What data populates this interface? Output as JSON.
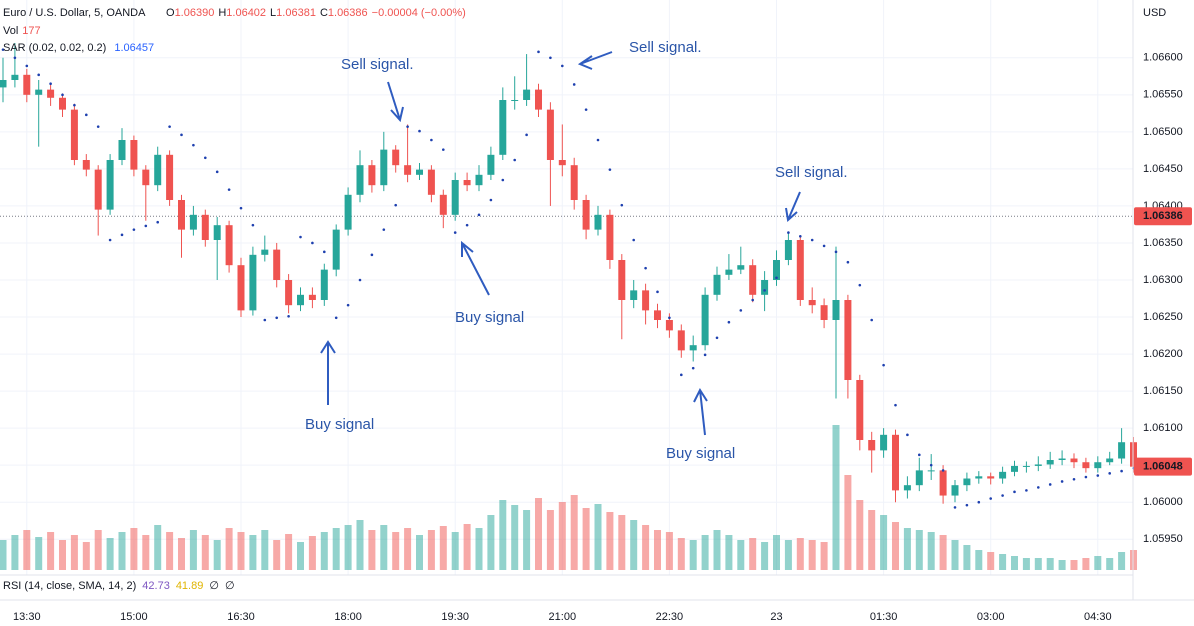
{
  "chart_data": {
    "type": "candlestick",
    "symbol": "Euro / U.S. Dollar, 5, OANDA",
    "quote": [
      {
        "prefix": "O",
        "value": "1.06390"
      },
      {
        "prefix": "H",
        "value": "1.06402"
      },
      {
        "prefix": "L",
        "value": "1.06381"
      },
      {
        "prefix": "C",
        "value": "1.06386"
      }
    ],
    "change": "−0.00004 (−0.00%)",
    "volume_legend": {
      "label": "Vol",
      "value": 177
    },
    "sar_legend": {
      "label": "SAR (0.02, 0.02, 0.2)",
      "value": 1.06457
    },
    "rsi_legend": {
      "label": "RSI (14, close, SMA, 14, 2)",
      "values": [
        42.73,
        41.89
      ],
      "empty": [
        "∅",
        "∅"
      ]
    },
    "currency": "USD",
    "up_color": "#26a69a",
    "down_color": "#ef5350",
    "sar_color": "#1e40af",
    "grid": true,
    "ylim": [
      1.05895,
      1.06678
    ],
    "yticks": [
      {
        "value": 1.0595,
        "label": "1.05950"
      },
      {
        "value": 1.06,
        "label": "1.06000"
      },
      {
        "value": 1.0605,
        "label": "1.06050"
      },
      {
        "value": 1.061,
        "label": "1.06100"
      },
      {
        "value": 1.0615,
        "label": "1.06150"
      },
      {
        "value": 1.062,
        "label": "1.06200"
      },
      {
        "value": 1.0625,
        "label": "1.06250"
      },
      {
        "value": 1.063,
        "label": "1.06300"
      },
      {
        "value": 1.0635,
        "label": "1.06350"
      },
      {
        "value": 1.064,
        "label": "1.06400"
      },
      {
        "value": 1.0645,
        "label": "1.06450"
      },
      {
        "value": 1.065,
        "label": "1.06500"
      },
      {
        "value": 1.0655,
        "label": "1.06550"
      },
      {
        "value": 1.066,
        "label": "1.06600"
      }
    ],
    "price_lines": [
      {
        "value": 1.06386,
        "dotted": true
      },
      {
        "value": 1.06048,
        "dotted": false
      }
    ],
    "vlim": [
      0,
      200
    ],
    "categories": [
      null,
      null,
      "13:30",
      null,
      null,
      null,
      null,
      null,
      null,
      null,
      null,
      "15:00",
      null,
      null,
      null,
      null,
      null,
      null,
      null,
      null,
      "16:30",
      null,
      null,
      null,
      null,
      null,
      null,
      null,
      null,
      "18:00",
      null,
      null,
      null,
      null,
      null,
      null,
      null,
      null,
      "19:30",
      null,
      null,
      null,
      null,
      null,
      null,
      null,
      null,
      "21:00",
      null,
      null,
      null,
      null,
      null,
      null,
      null,
      null,
      "22:30",
      null,
      null,
      null,
      null,
      null,
      null,
      null,
      null,
      "23",
      null,
      null,
      null,
      null,
      null,
      null,
      null,
      null,
      "01:30",
      null,
      null,
      null,
      null,
      null,
      null,
      null,
      null,
      "03:00",
      null,
      null,
      null,
      null,
      null,
      null,
      null,
      null,
      "04:30",
      null,
      null,
      null
    ],
    "open": [
      1.0656,
      1.0657,
      1.06577,
      1.0655,
      1.06557,
      1.06546,
      1.0653,
      1.06462,
      1.06449,
      1.06395,
      1.06462,
      1.06489,
      1.06449,
      1.06428,
      1.06469,
      1.06408,
      1.06368,
      1.06388,
      1.06354,
      1.06374,
      1.0632,
      1.06259,
      1.06334,
      1.06341,
      1.063,
      1.06266,
      1.0628,
      1.06273,
      1.06314,
      1.06368,
      1.06415,
      1.06455,
      1.06428,
      1.06476,
      1.06455,
      1.06442,
      1.06449,
      1.06415,
      1.06388,
      1.06435,
      1.06428,
      1.06442,
      1.06469,
      1.06543,
      1.06543,
      1.06557,
      1.0653,
      1.06462,
      1.06455,
      1.06408,
      1.06368,
      1.06388,
      1.06327,
      1.06273,
      1.06286,
      1.06259,
      1.06246,
      1.06232,
      1.06205,
      1.06212,
      1.0628,
      1.06307,
      1.06314,
      1.0632,
      1.0628,
      1.063,
      1.06327,
      1.06354,
      1.06273,
      1.06266,
      1.06246,
      1.06273,
      1.06165,
      1.06084,
      1.0607,
      1.06091,
      1.06016,
      1.06023,
      1.06043,
      1.06043,
      1.06009,
      1.06023,
      1.06032,
      1.06035,
      1.06032,
      1.06041,
      1.06049,
      1.06049,
      1.06051,
      1.06057,
      1.06059,
      1.06054,
      1.06046,
      1.06054,
      1.06059,
      1.06081
    ],
    "high": [
      1.066,
      1.0662,
      1.06585,
      1.0657,
      1.06565,
      1.06552,
      1.06538,
      1.0647,
      1.06455,
      1.0647,
      1.06505,
      1.06495,
      1.06455,
      1.0648,
      1.06475,
      1.06415,
      1.064,
      1.06395,
      1.06385,
      1.0638,
      1.0633,
      1.06345,
      1.0636,
      1.0635,
      1.06308,
      1.0629,
      1.0629,
      1.06322,
      1.06375,
      1.06425,
      1.06475,
      1.06462,
      1.065,
      1.06482,
      1.0651,
      1.06458,
      1.06455,
      1.06422,
      1.06445,
      1.06445,
      1.06455,
      1.0648,
      1.0656,
      1.06575,
      1.06605,
      1.06565,
      1.0654,
      1.0651,
      1.06465,
      1.06415,
      1.064,
      1.06395,
      1.06335,
      1.063,
      1.06295,
      1.06268,
      1.06255,
      1.0624,
      1.06225,
      1.0629,
      1.06318,
      1.06335,
      1.06345,
      1.06328,
      1.06312,
      1.0634,
      1.06365,
      1.0636,
      1.0629,
      1.06275,
      1.06345,
      1.0628,
      1.06172,
      1.06095,
      1.061,
      1.06098,
      1.06035,
      1.0606,
      1.06065,
      1.0605,
      1.0603,
      1.0604,
      1.06042,
      1.0604,
      1.06048,
      1.06056,
      1.06055,
      1.06062,
      1.06068,
      1.0607,
      1.06066,
      1.0606,
      1.06062,
      1.06068,
      1.061,
      1.06088
    ],
    "low": [
      1.0654,
      1.0656,
      1.0654,
      1.0648,
      1.06535,
      1.0652,
      1.06455,
      1.0644,
      1.0636,
      1.06388,
      1.06455,
      1.0644,
      1.0638,
      1.0642,
      1.064,
      1.0633,
      1.0636,
      1.06345,
      1.063,
      1.0631,
      1.0625,
      1.06252,
      1.06325,
      1.0629,
      1.06255,
      1.06258,
      1.06262,
      1.06265,
      1.06305,
      1.0636,
      1.06405,
      1.06418,
      1.0642,
      1.06445,
      1.06432,
      1.06435,
      1.06405,
      1.0637,
      1.0638,
      1.0642,
      1.0642,
      1.06435,
      1.06462,
      1.0653,
      1.06535,
      1.0652,
      1.064,
      1.0644,
      1.06395,
      1.06355,
      1.0636,
      1.06315,
      1.0622,
      1.06262,
      1.0624,
      1.06235,
      1.06222,
      1.06195,
      1.0619,
      1.06205,
      1.06272,
      1.063,
      1.06308,
      1.0627,
      1.06258,
      1.06292,
      1.0632,
      1.06265,
      1.06255,
      1.06235,
      1.0614,
      1.0614,
      1.0607,
      1.0604,
      1.0606,
      1.06,
      1.06005,
      1.06015,
      1.0603,
      1.05998,
      1.06,
      1.06015,
      1.06025,
      1.06024,
      1.06025,
      1.06035,
      1.0604,
      1.06042,
      1.06045,
      1.0605,
      1.06046,
      1.0604,
      1.0604,
      1.0605,
      1.06052,
      1.0604
    ],
    "close": [
      1.0657,
      1.06577,
      1.0655,
      1.06557,
      1.06546,
      1.0653,
      1.06462,
      1.06449,
      1.06395,
      1.06462,
      1.06489,
      1.06449,
      1.06428,
      1.06469,
      1.06408,
      1.06368,
      1.06388,
      1.06354,
      1.06374,
      1.0632,
      1.06259,
      1.06334,
      1.06341,
      1.063,
      1.06266,
      1.0628,
      1.06273,
      1.06314,
      1.06368,
      1.06415,
      1.06455,
      1.06428,
      1.06476,
      1.06455,
      1.06442,
      1.06449,
      1.06415,
      1.06388,
      1.06435,
      1.06428,
      1.06442,
      1.06469,
      1.06543,
      1.06543,
      1.06557,
      1.0653,
      1.06462,
      1.06455,
      1.06408,
      1.06368,
      1.06388,
      1.06327,
      1.06273,
      1.06286,
      1.06259,
      1.06246,
      1.06232,
      1.06205,
      1.06212,
      1.0628,
      1.06307,
      1.06314,
      1.0632,
      1.0628,
      1.063,
      1.06327,
      1.06354,
      1.06273,
      1.06266,
      1.06246,
      1.06273,
      1.06165,
      1.06084,
      1.0607,
      1.06091,
      1.06016,
      1.06023,
      1.06043,
      1.06043,
      1.06009,
      1.06023,
      1.06032,
      1.06035,
      1.06032,
      1.06041,
      1.06049,
      1.06049,
      1.06051,
      1.06057,
      1.06059,
      1.06054,
      1.06046,
      1.06054,
      1.06059,
      1.06081,
      1.06048
    ],
    "sar": [
      1.06611,
      1.066,
      1.06589,
      1.06577,
      1.06565,
      1.0655,
      1.06536,
      1.06523,
      1.06507,
      1.06354,
      1.06361,
      1.06368,
      1.06373,
      1.06378,
      1.06507,
      1.06496,
      1.06482,
      1.06465,
      1.06446,
      1.06422,
      1.06397,
      1.06374,
      1.06246,
      1.06249,
      1.06251,
      1.06358,
      1.0635,
      1.06338,
      1.06249,
      1.06266,
      1.063,
      1.06334,
      1.06368,
      1.06401,
      1.06507,
      1.06501,
      1.06489,
      1.06476,
      1.06364,
      1.06374,
      1.06388,
      1.06408,
      1.06435,
      1.06462,
      1.06496,
      1.06608,
      1.066,
      1.06589,
      1.06564,
      1.0653,
      1.06489,
      1.06449,
      1.06401,
      1.06354,
      1.06316,
      1.06284,
      1.06249,
      1.06172,
      1.06181,
      1.06199,
      1.06222,
      1.06243,
      1.06259,
      1.06273,
      1.06286,
      1.06303,
      1.06364,
      1.06359,
      1.06354,
      1.06346,
      1.06338,
      1.06324,
      1.06293,
      1.06246,
      1.06185,
      1.06131,
      1.06091,
      1.06064,
      1.0605,
      1.06043,
      1.05993,
      1.05996,
      1.06,
      1.06005,
      1.06009,
      1.06014,
      1.06016,
      1.0602,
      1.06024,
      1.06028,
      1.06031,
      1.06034,
      1.06036,
      1.06039,
      1.06042,
      1.06046
    ],
    "volume": [
      30,
      35,
      40,
      33,
      38,
      30,
      35,
      28,
      40,
      32,
      38,
      42,
      35,
      45,
      38,
      32,
      40,
      35,
      30,
      42,
      38,
      35,
      40,
      30,
      36,
      28,
      34,
      38,
      42,
      45,
      50,
      40,
      45,
      38,
      42,
      35,
      40,
      44,
      38,
      46,
      42,
      55,
      70,
      65,
      60,
      72,
      60,
      68,
      75,
      62,
      66,
      58,
      55,
      50,
      45,
      40,
      38,
      32,
      30,
      35,
      40,
      35,
      30,
      32,
      28,
      35,
      30,
      32,
      30,
      28,
      145,
      95,
      70,
      60,
      55,
      48,
      42,
      40,
      38,
      35,
      30,
      25,
      20,
      18,
      16,
      14,
      12,
      12,
      12,
      10,
      10,
      12,
      14,
      12,
      18,
      20
    ],
    "annotations": [
      "Sell signal.",
      "Sell signal.",
      "Sell signal.",
      "Buy signal",
      "Buy signal",
      "Buy signal"
    ]
  }
}
